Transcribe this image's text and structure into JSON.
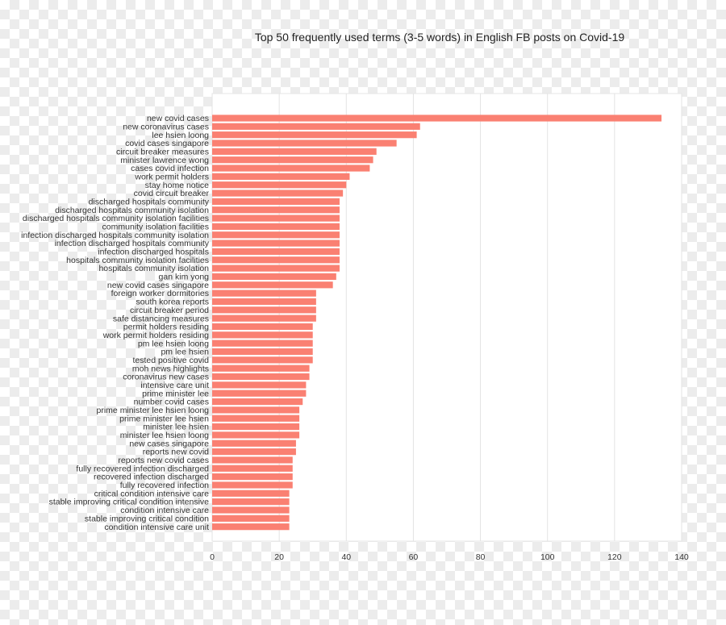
{
  "chart_data": {
    "type": "bar",
    "orientation": "horizontal",
    "title": "Top 50 frequently used terms (3-5 words) in English FB posts on Covid-19",
    "xlabel": "",
    "ylabel": "",
    "xlim": [
      0,
      140
    ],
    "x_ticks": [
      0,
      20,
      40,
      60,
      80,
      100,
      120,
      140
    ],
    "grid": true,
    "bar_color": "#fa8072",
    "categories": [
      "new covid cases",
      "new coronavirus cases",
      "lee hsien loong",
      "covid cases singapore",
      "circuit breaker measures",
      "minister lawrence wong",
      "cases covid infection",
      "work permit holders",
      "stay home notice",
      "covid circuit breaker",
      "discharged hospitals community",
      "discharged hospitals community isolation",
      "discharged hospitals community isolation facilities",
      "community isolation facilities",
      "infection discharged hospitals community isolation",
      "infection discharged hospitals community",
      "infection discharged hospitals",
      "hospitals community isolation facilities",
      "hospitals community isolation",
      "gan kim yong",
      "new covid cases singapore",
      "foreign worker dormitories",
      "south korea reports",
      "circuit breaker period",
      "safe distancing measures",
      "permit holders residing",
      "work permit holders residing",
      "pm lee hsien loong",
      "pm lee hsien",
      "tested positive covid",
      "moh news highlights",
      "coronavirus new cases",
      "intensive care unit",
      "prime minister lee",
      "number covid cases",
      "prime minister lee hsien loong",
      "prime minister lee hsien",
      "minister lee hsien",
      "minister lee hsien loong",
      "new cases singapore",
      "reports new covid",
      "reports new covid cases",
      "fully recovered infection discharged",
      "recovered infection discharged",
      "fully recovered infection",
      "critical condition intensive care",
      "stable improving critical condition intensive",
      "condition intensive care",
      "stable improving critical condition",
      "condition intensive care unit"
    ],
    "values": [
      134,
      62,
      61,
      55,
      49,
      48,
      47,
      41,
      40,
      39,
      38,
      38,
      38,
      38,
      38,
      38,
      38,
      38,
      38,
      37,
      36,
      31,
      31,
      31,
      31,
      30,
      30,
      30,
      30,
      30,
      29,
      29,
      28,
      28,
      27,
      26,
      26,
      26,
      26,
      25,
      25,
      24,
      24,
      24,
      24,
      23,
      23,
      23,
      23,
      23
    ]
  }
}
